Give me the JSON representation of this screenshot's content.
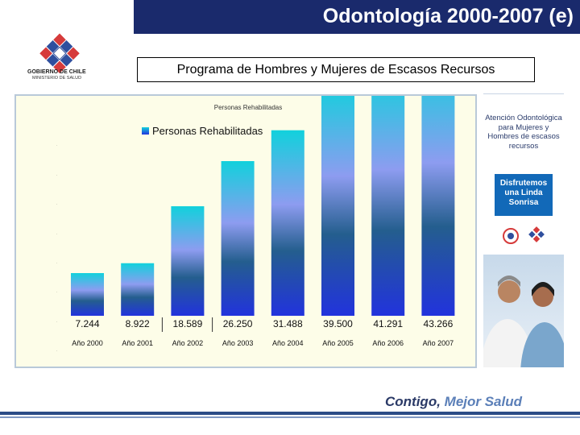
{
  "header": {
    "title": "Odontología 2000-2007 (e)"
  },
  "logo": {
    "line1": "GOBIERNO DE CHILE",
    "line2": "MINISTERIO DE SALUD"
  },
  "subtitle": "Programa de Hombres y Mujeres de Escasos Recursos",
  "chart_data": {
    "type": "bar",
    "title": "Personas Rehabilitadas",
    "legend": {
      "label": "Personas Rehabilitadas",
      "position": "top-left"
    },
    "categories": [
      "Año 2000",
      "Año 2001",
      "Año 2002",
      "Año 2003",
      "Año 2004",
      "Año 2005",
      "Año 2006",
      "Año 2007"
    ],
    "values": [
      7244,
      8922,
      18589,
      26250,
      31488,
      39500,
      41291,
      43266
    ],
    "value_labels": [
      "7.244",
      "8.922",
      "18.589",
      "26.250",
      "31.488",
      "39.500",
      "41.291",
      "43.266"
    ],
    "xlabel": "",
    "ylabel": "",
    "grid": false,
    "colors": {
      "top": "#11d1dc",
      "middle": "#8d9cf0",
      "dark": "#245e8e",
      "bottom": "#2233dd"
    }
  },
  "poster": {
    "text": "Atención Odontológica para Mujeres y Hombres de escasos recursos",
    "box": "Disfrutemos una Linda Sonrisa"
  },
  "footer": {
    "slogan_part1": "Contigo, ",
    "slogan_part2": "Mejor Salud"
  }
}
